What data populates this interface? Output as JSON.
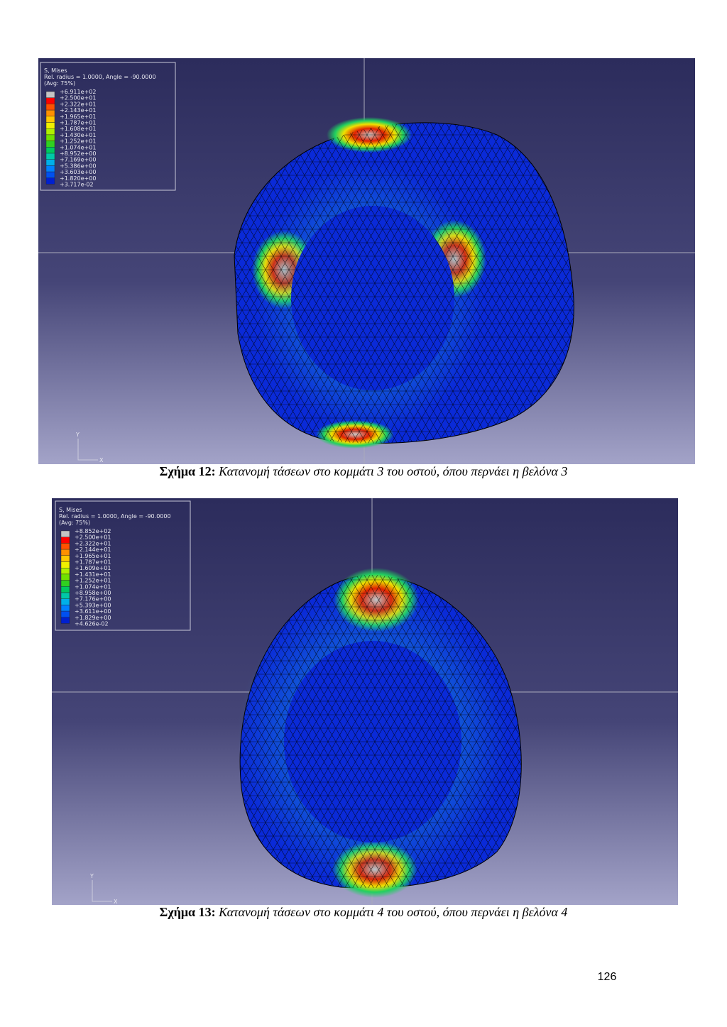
{
  "figures": [
    {
      "legend": {
        "title": "S, Mises",
        "subtitle": "Rel. radius = 1.0000, Angle = -90.0000",
        "avg": "(Avg: 75%)",
        "values": [
          "+6.911e+02",
          "+2.500e+01",
          "+2.322e+01",
          "+2.143e+01",
          "+1.965e+01",
          "+1.787e+01",
          "+1.608e+01",
          "+1.430e+01",
          "+1.252e+01",
          "+1.074e+01",
          "+8.952e+00",
          "+7.169e+00",
          "+5.386e+00",
          "+3.603e+00",
          "+1.820e+00",
          "+3.717e-02"
        ]
      },
      "axis_y": "Y",
      "axis_x": "X",
      "caption_label": "Σχήμα 12:",
      "caption_text": "Κατανομή τάσεων στο κομμάτι 3 του οστού, όπου περνάει η βελόνα 3"
    },
    {
      "legend": {
        "title": "S, Mises",
        "subtitle": "Rel. radius = 1.0000, Angle = -90.0000",
        "avg": "(Avg: 75%)",
        "values": [
          "+8.852e+02",
          "+2.500e+01",
          "+2.322e+01",
          "+2.144e+01",
          "+1.965e+01",
          "+1.787e+01",
          "+1.609e+01",
          "+1.431e+01",
          "+1.252e+01",
          "+1.074e+01",
          "+8.958e+00",
          "+7.176e+00",
          "+5.393e+00",
          "+3.611e+00",
          "+1.829e+00",
          "+4.626e-02"
        ]
      },
      "axis_y": "Y",
      "axis_x": "X",
      "caption_label": "Σχήμα 13:",
      "caption_text": "Κατανομή τάσεων στο κομμάτι 4 του οστού, όπου περνάει η βελόνα 4"
    }
  ],
  "page_number": "126"
}
